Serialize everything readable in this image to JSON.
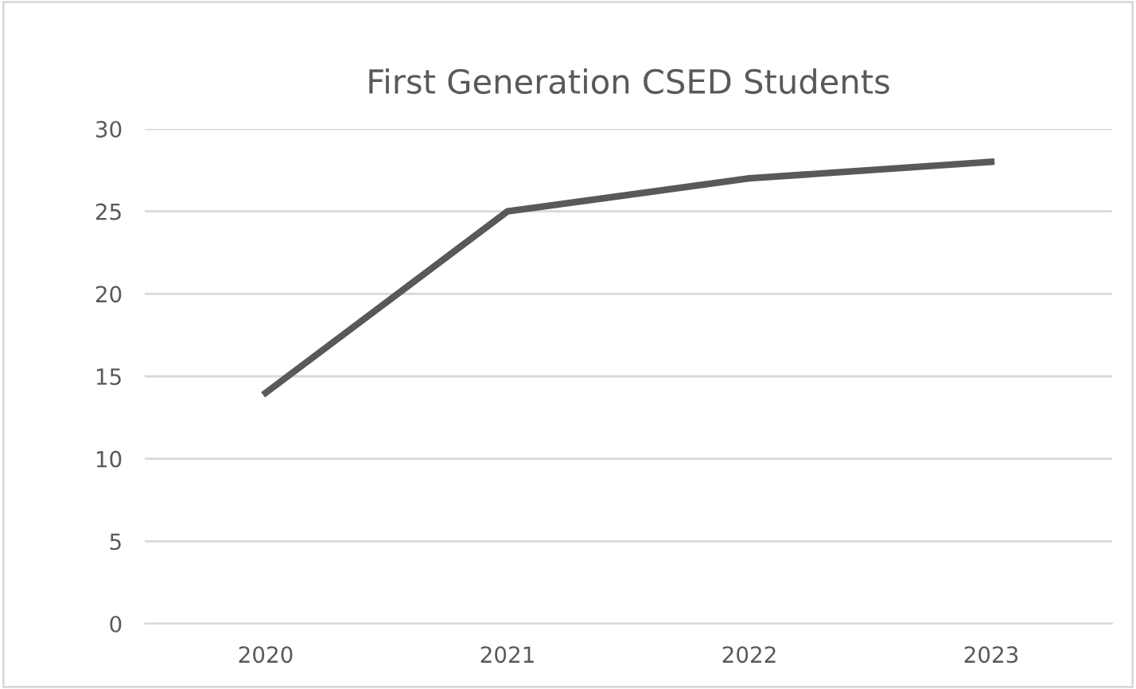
{
  "chart_data": {
    "type": "line",
    "title": "First Generation CSED Students",
    "categories": [
      "2020",
      "2021",
      "2022",
      "2023"
    ],
    "series": [
      {
        "color": "#595959",
        "values": [
          14,
          25,
          27,
          28
        ]
      }
    ],
    "ylim": [
      0,
      30
    ],
    "yticks": [
      0,
      5,
      10,
      15,
      20,
      25,
      30
    ],
    "grid": "y",
    "legend": false,
    "marker": "none",
    "line_style": "solid"
  }
}
